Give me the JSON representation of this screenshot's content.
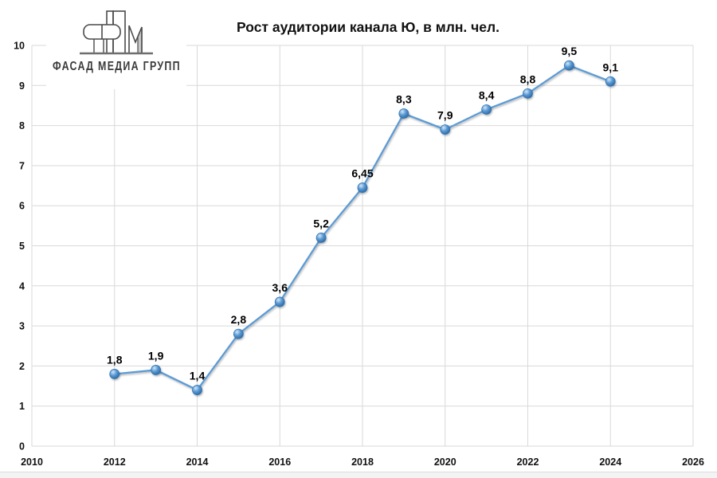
{
  "logo": {
    "text": "ФАСАД МЕДИА ГРУПП",
    "colors": {
      "accent_red": "#e84b5e",
      "outline": "#4a4a4a",
      "gray": "#c9c9c9"
    }
  },
  "chart_data": {
    "type": "line",
    "title": "Рост аудитории канала Ю, в млн. чел.",
    "x": [
      2012,
      2013,
      2014,
      2015,
      2016,
      2017,
      2018,
      2019,
      2020,
      2021,
      2022,
      2023,
      2024
    ],
    "values": [
      1.8,
      1.9,
      1.4,
      2.8,
      3.6,
      5.2,
      6.45,
      8.3,
      7.9,
      8.4,
      8.8,
      9.5,
      9.1
    ],
    "point_labels": [
      "1,8",
      "1,9",
      "1,4",
      "2,8",
      "3,6",
      "5,2",
      "6,45",
      "8,3",
      "7,9",
      "8,4",
      "8,8",
      "9,5",
      "9,1"
    ],
    "xlim": [
      2010,
      2026
    ],
    "ylim": [
      0,
      10
    ],
    "x_ticks": [
      2010,
      2012,
      2014,
      2016,
      2018,
      2020,
      2022,
      2024,
      2026
    ],
    "y_ticks": [
      0,
      1,
      2,
      3,
      4,
      5,
      6,
      7,
      8,
      9,
      10
    ],
    "grid": true,
    "legend": "none",
    "colors": {
      "line": "#5b9bd5",
      "marker_light": "#d6e7f7",
      "marker_mid": "#5b9bd5",
      "marker_dark": "#2a6099",
      "marker_stroke": "#2e75b6",
      "grid": "#d9d9d9",
      "text": "#111111"
    }
  }
}
